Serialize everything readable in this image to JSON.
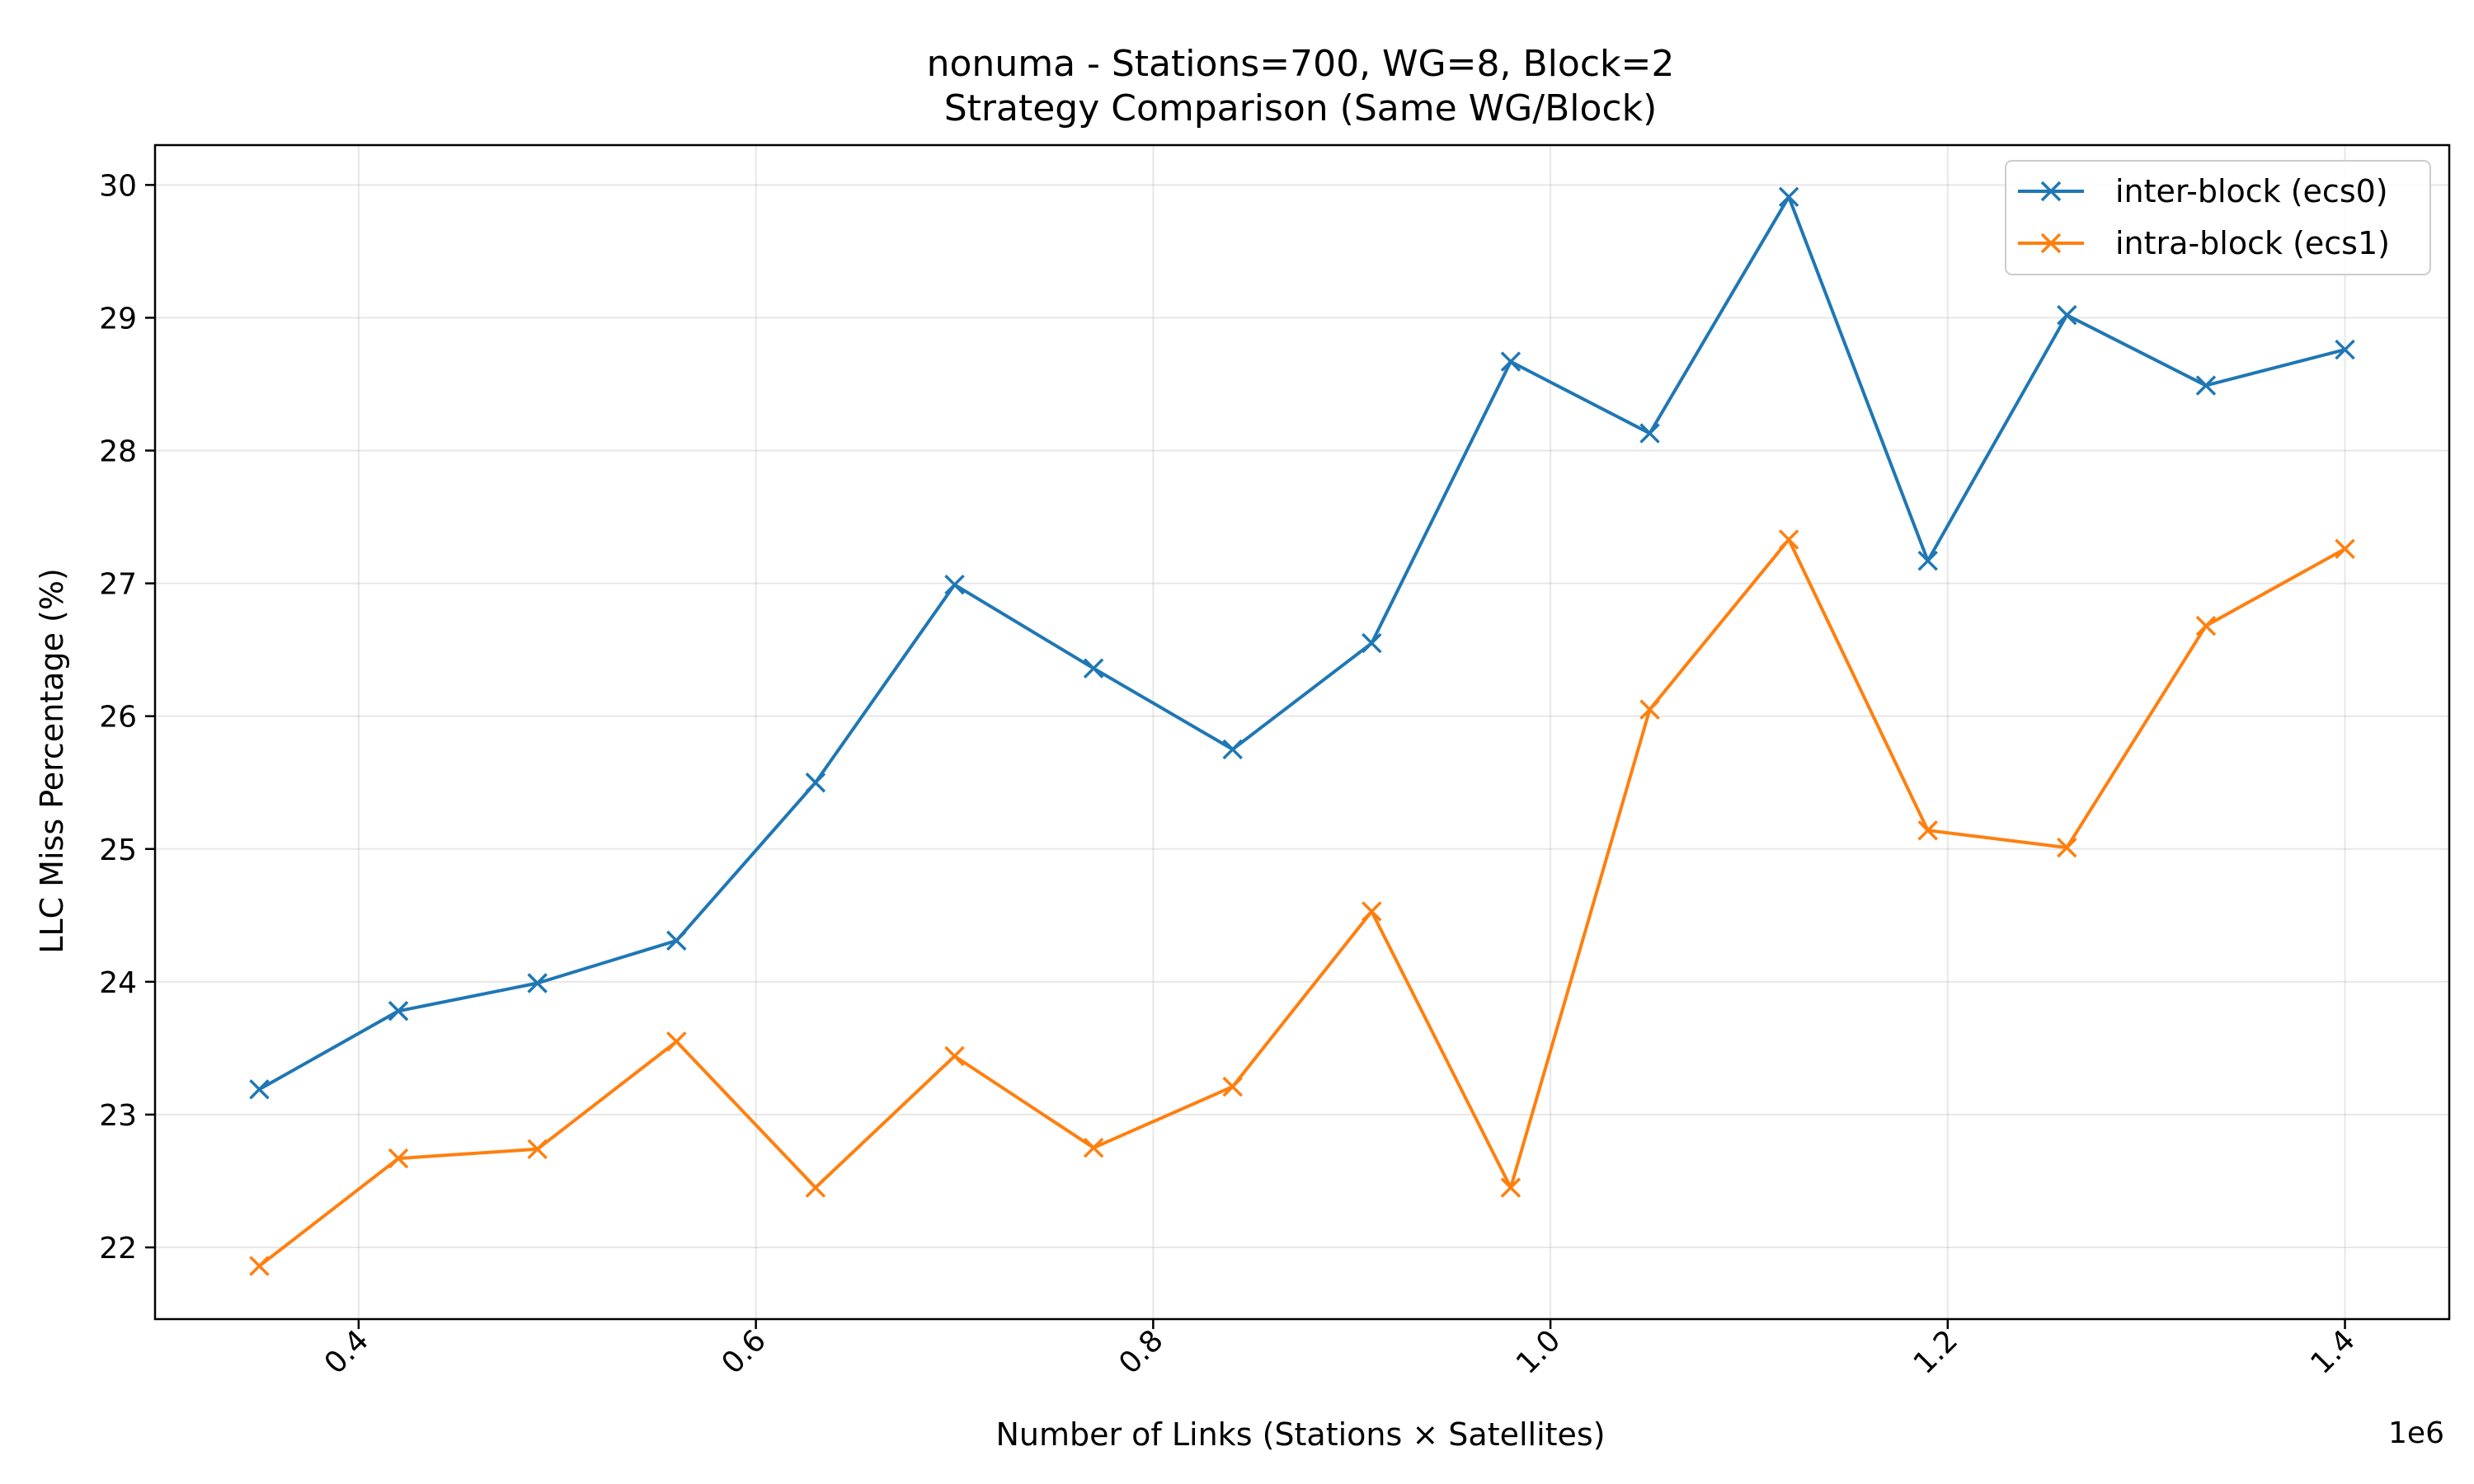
{
  "chart_data": {
    "type": "line",
    "title": "nonuma - Stations=700, WG=8, Block=2",
    "subtitle": "Strategy Comparison (Same WG/Block)",
    "xlabel": "Number of Links (Stations × Satellites)",
    "ylabel": "LLC Miss Percentage (%)",
    "x_offset_label": "1e6",
    "xlim": [
      0.2975,
      1.4525
    ],
    "ylim": [
      21.46,
      30.3
    ],
    "x_ticks": [
      0.4,
      0.6,
      0.8,
      1.0,
      1.2,
      1.4
    ],
    "x_tick_labels": [
      "0.4",
      "0.6",
      "0.8",
      "1.0",
      "1.2",
      "1.4"
    ],
    "y_ticks": [
      22,
      23,
      24,
      25,
      26,
      27,
      28,
      29,
      30
    ],
    "y_tick_labels": [
      "22",
      "23",
      "24",
      "25",
      "26",
      "27",
      "28",
      "29",
      "30"
    ],
    "grid": true,
    "legend_position": "top-right",
    "x": [
      0.35,
      0.42,
      0.49,
      0.56,
      0.63,
      0.7,
      0.77,
      0.84,
      0.91,
      0.98,
      1.05,
      1.12,
      1.19,
      1.26,
      1.33,
      1.4
    ],
    "series": [
      {
        "name": "inter-block (ecs0)",
        "color": "#1f77b4",
        "marker": "x",
        "values": [
          23.19,
          23.78,
          23.99,
          24.31,
          25.5,
          26.99,
          26.36,
          25.75,
          26.55,
          28.67,
          28.13,
          29.91,
          27.17,
          29.02,
          28.49,
          28.76
        ]
      },
      {
        "name": "intra-block (ecs1)",
        "color": "#ff7f0e",
        "marker": "x",
        "values": [
          21.86,
          22.67,
          22.74,
          23.55,
          22.45,
          23.44,
          22.75,
          23.21,
          24.53,
          22.45,
          26.05,
          27.33,
          25.14,
          25.01,
          26.68,
          27.26
        ]
      }
    ]
  }
}
